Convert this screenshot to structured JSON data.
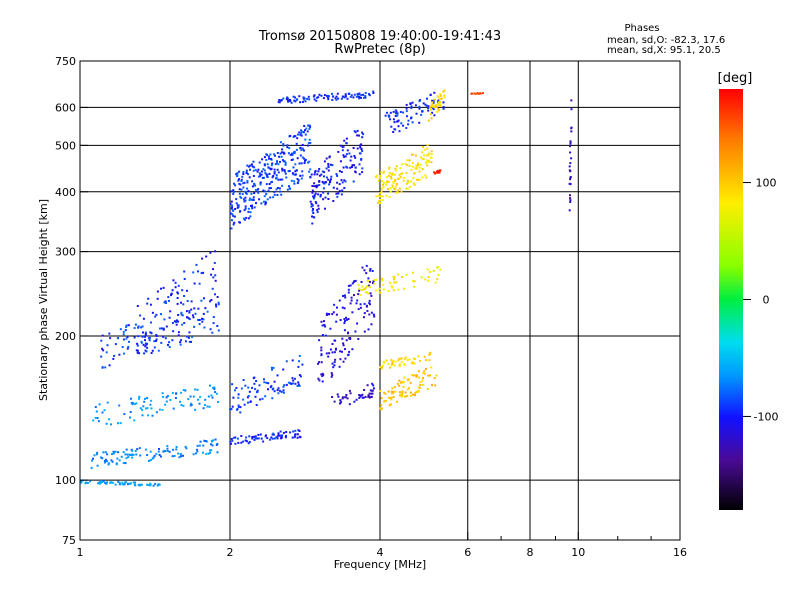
{
  "header": {
    "title": "Tromsø 20150808 19:40:00-19:41:43",
    "subtitle": "RwPretec (8p)"
  },
  "stats": {
    "heading": "Phases",
    "line_o": "mean, sd,O:  -82.3, 17.6",
    "line_x": "mean, sd,X:  95.1, 20.5"
  },
  "colorbar": {
    "label": "[deg]",
    "ticks": [
      "100",
      "0",
      "-100"
    ],
    "tick_values": [
      100,
      0,
      -100
    ],
    "range": [
      -180,
      180
    ]
  },
  "chart_data": {
    "type": "scatter",
    "title": "Tromsø 20150808 19:40:00-19:41:43",
    "subtitle": "RwPretec (8p)",
    "xlabel": "Frequency [MHz]",
    "ylabel": "Stationary phase Virtual Height [km]",
    "x_scale": "log",
    "y_scale": "log",
    "xlim": [
      1,
      16
    ],
    "ylim": [
      75,
      750
    ],
    "x_ticks": [
      1,
      2,
      4,
      6,
      8,
      10,
      16
    ],
    "x_tick_labels": [
      "1",
      "2",
      "4",
      "6",
      "8",
      "10",
      "16"
    ],
    "x_minor_ticks": [
      7,
      9,
      12,
      14
    ],
    "y_ticks": [
      75,
      100,
      200,
      300,
      400,
      500,
      600,
      750
    ],
    "y_tick_labels": [
      "75",
      "100",
      "200",
      "300",
      "400",
      "500",
      "600",
      "750"
    ],
    "grid": true,
    "color_by": "phase [deg]",
    "series": [
      {
        "freq_start": 1.0,
        "freq_end": 1.45,
        "height_start": 100,
        "height_end": 97,
        "phase": -65,
        "count": 60
      },
      {
        "freq_start": 1.05,
        "freq_end": 1.9,
        "height_start": 106,
        "height_end": 122,
        "phase": -75,
        "count": 110
      },
      {
        "freq_start": 1.05,
        "freq_end": 1.9,
        "height_start": 128,
        "height_end": 160,
        "phase": -70,
        "count": 90
      },
      {
        "freq_start": 1.1,
        "freq_end": 1.9,
        "height_start": 168,
        "height_end": 245,
        "phase": -95,
        "count": 120
      },
      {
        "freq_start": 1.3,
        "freq_end": 1.9,
        "height_start": 180,
        "height_end": 310,
        "phase": -100,
        "count": 100
      },
      {
        "freq_start": 2.0,
        "freq_end": 2.8,
        "height_start": 118,
        "height_end": 128,
        "phase": -100,
        "count": 70
      },
      {
        "freq_start": 2.0,
        "freq_end": 2.8,
        "height_start": 135,
        "height_end": 185,
        "phase": -95,
        "count": 90
      },
      {
        "freq_start": 2.0,
        "freq_end": 2.9,
        "height_start": 330,
        "height_end": 560,
        "phase": -95,
        "count": 320
      },
      {
        "freq_start": 2.5,
        "freq_end": 3.9,
        "height_start": 610,
        "height_end": 650,
        "phase": -100,
        "count": 90
      },
      {
        "freq_start": 2.9,
        "freq_end": 3.7,
        "height_start": 340,
        "height_end": 560,
        "phase": -105,
        "count": 160
      },
      {
        "freq_start": 3.0,
        "freq_end": 3.9,
        "height_start": 150,
        "height_end": 300,
        "phase": -115,
        "count": 140
      },
      {
        "freq_start": 3.2,
        "freq_end": 3.9,
        "height_start": 140,
        "height_end": 160,
        "phase": -120,
        "count": 45
      },
      {
        "freq_start": 3.9,
        "freq_end": 5.1,
        "height_start": 370,
        "height_end": 510,
        "phase": 85,
        "count": 140
      },
      {
        "freq_start": 4.0,
        "freq_end": 5.1,
        "height_start": 170,
        "height_end": 185,
        "phase": 90,
        "count": 45
      },
      {
        "freq_start": 4.0,
        "freq_end": 5.2,
        "height_start": 140,
        "height_end": 175,
        "phase": 100,
        "count": 90
      },
      {
        "freq_start": 3.6,
        "freq_end": 5.3,
        "height_start": 240,
        "height_end": 280,
        "phase": 80,
        "count": 60
      },
      {
        "freq_start": 4.1,
        "freq_end": 5.4,
        "height_start": 520,
        "height_end": 660,
        "phase": -100,
        "count": 80
      },
      {
        "freq_start": 5.0,
        "freq_end": 5.4,
        "height_start": 560,
        "height_end": 655,
        "phase": 90,
        "count": 35
      },
      {
        "freq_start": 5.1,
        "freq_end": 5.35,
        "height_start": 435,
        "height_end": 445,
        "phase": 165,
        "count": 12
      },
      {
        "freq_start": 6.1,
        "freq_end": 6.5,
        "height_start": 638,
        "height_end": 645,
        "phase": 150,
        "count": 10
      },
      {
        "freq_start": 9.6,
        "freq_end": 9.7,
        "height_start": 330,
        "height_end": 660,
        "phase": -130,
        "count": 25
      }
    ]
  }
}
